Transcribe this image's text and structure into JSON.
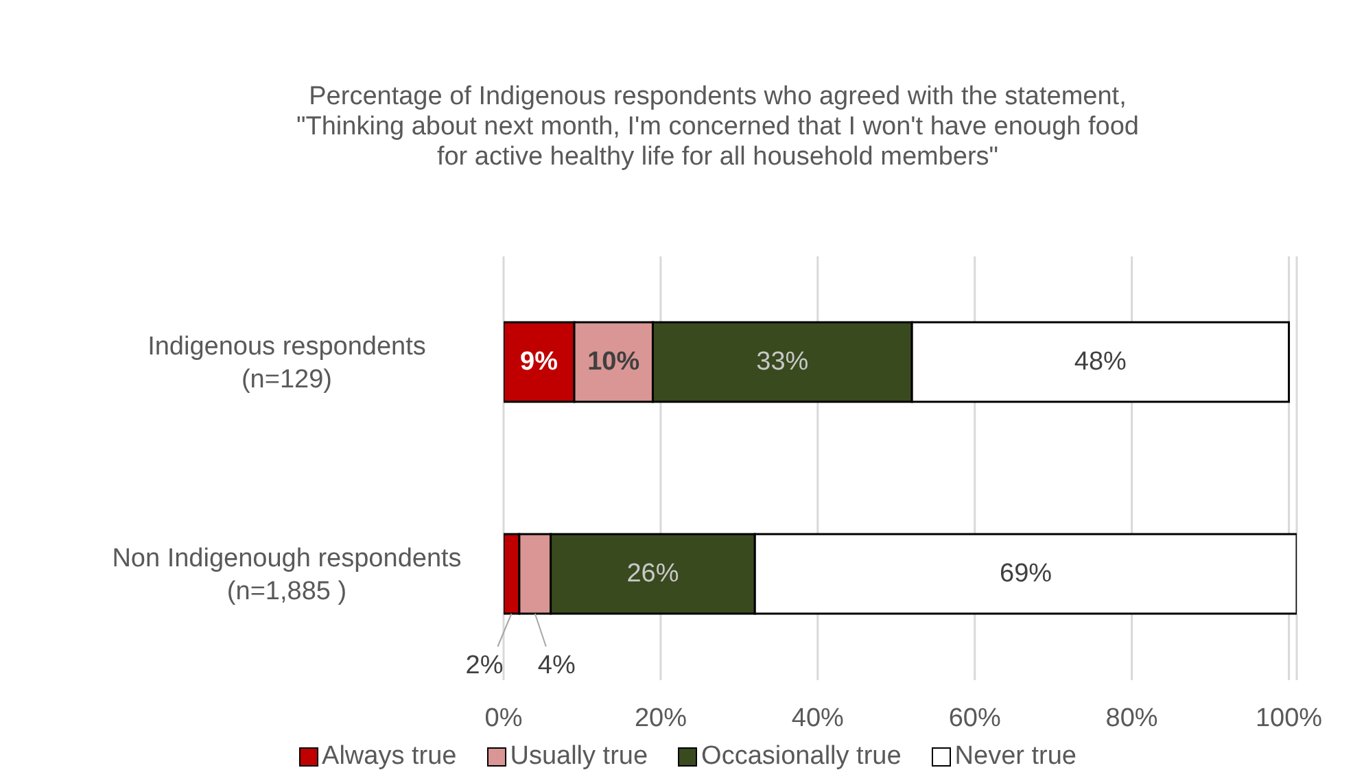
{
  "chart_data": {
    "type": "bar",
    "orientation": "horizontal",
    "stacked": true,
    "title": "Percentage of Indigenous respondents who agreed with the statement, \"Thinking about next month, I'm concerned that I won't have enough food for active healthy life for all household members\"",
    "categories": [
      "Indigenous respondents (n=129)",
      "Non Indigenough respondents (n=1,885 )"
    ],
    "series": [
      {
        "name": "Always true",
        "color": "#c00000",
        "values": [
          9,
          2
        ],
        "value_labels": [
          "9%",
          "2%"
        ]
      },
      {
        "name": "Usually true",
        "color": "#da9694",
        "values": [
          10,
          4
        ],
        "value_labels": [
          "10%",
          "4%"
        ]
      },
      {
        "name": "Occasionally true",
        "color": "#3a4a1f",
        "values": [
          33,
          26
        ],
        "value_labels": [
          "33%",
          "26%"
        ]
      },
      {
        "name": "Never true",
        "color": "#ffffff",
        "values": [
          48,
          69
        ],
        "value_labels": [
          "48%",
          "69%"
        ]
      }
    ],
    "xlim": [
      0,
      101
    ],
    "xticks": [
      {
        "value": 0,
        "label": "0%"
      },
      {
        "value": 20,
        "label": "20%"
      },
      {
        "value": 40,
        "label": "40%"
      },
      {
        "value": 60,
        "label": "60%"
      },
      {
        "value": 80,
        "label": "80%"
      },
      {
        "value": 100,
        "label": "100%"
      }
    ],
    "grid": "x",
    "legend": "bottom"
  }
}
